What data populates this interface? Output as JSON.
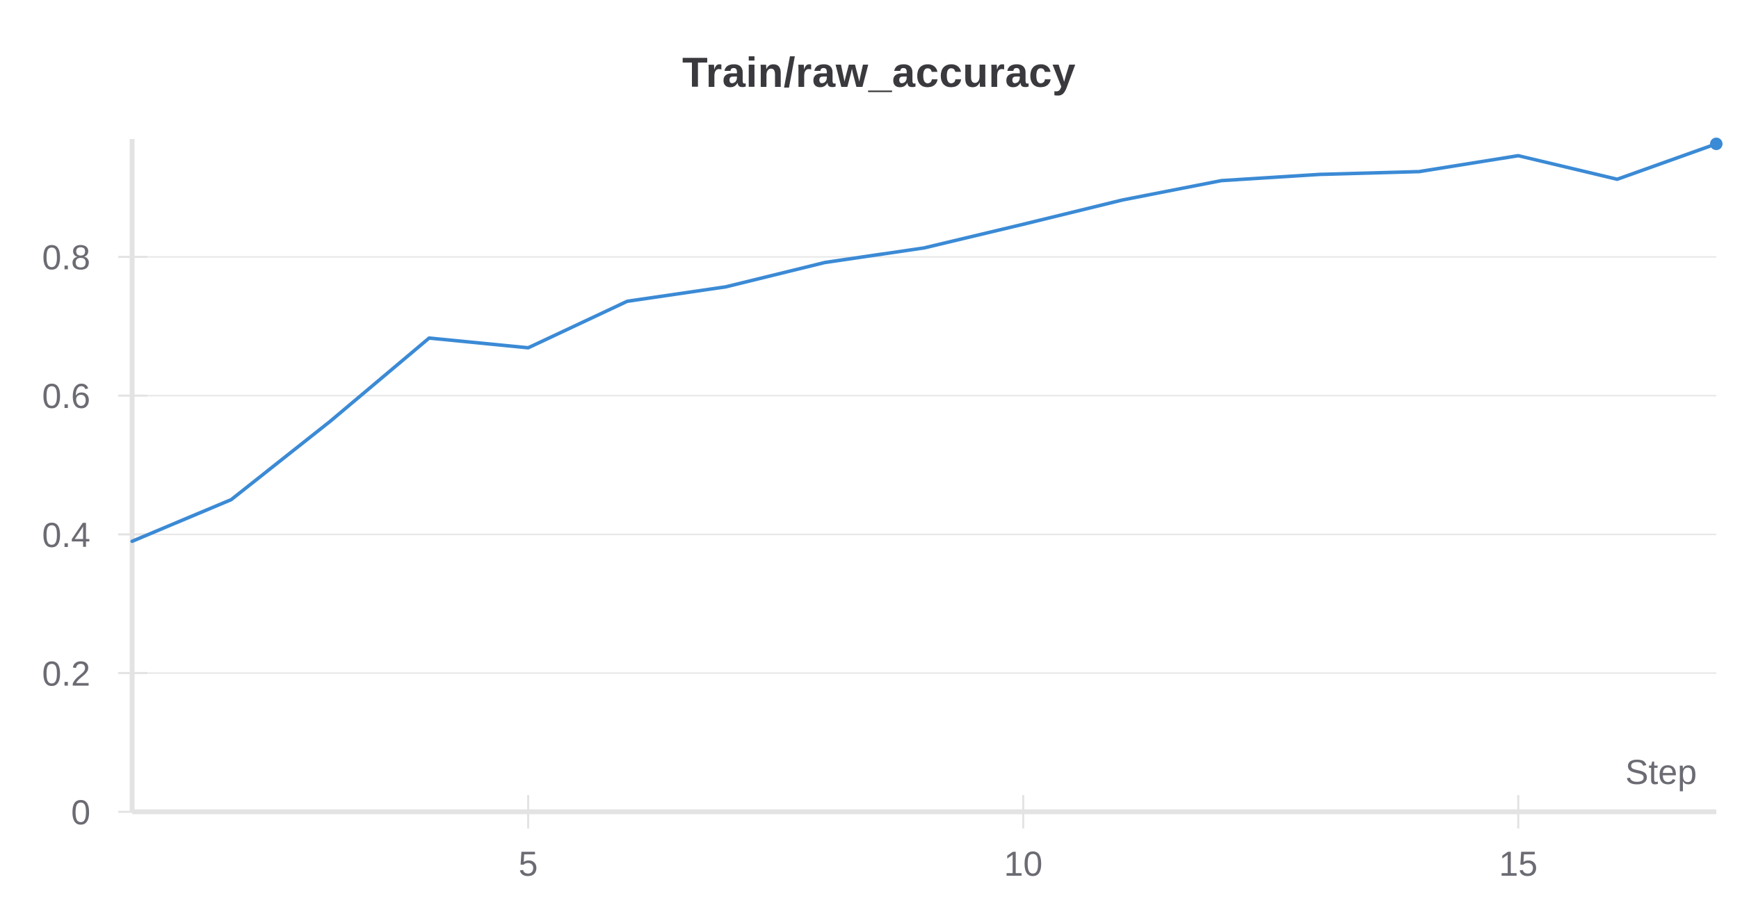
{
  "chart_data": {
    "type": "line",
    "title": "Train/raw_accuracy",
    "xlabel": "Step",
    "ylabel": "",
    "xlim": [
      1,
      17
    ],
    "ylim": [
      0,
      0.97
    ],
    "x_ticks": [
      5,
      10,
      15
    ],
    "y_ticks": [
      0,
      0.2,
      0.4,
      0.6,
      0.8
    ],
    "x_tick_labels": [
      "5",
      "10",
      "15"
    ],
    "y_tick_labels": [
      "0",
      "0.2",
      "0.4",
      "0.6",
      "0.8"
    ],
    "grid": true,
    "line_color": "#3b8ad5",
    "series": [
      {
        "x": [
          1,
          2,
          3,
          4,
          5,
          6,
          7,
          8,
          9,
          10,
          11,
          12,
          13,
          14,
          15,
          16,
          17
        ],
        "values": [
          0.39,
          0.45,
          0.563,
          0.683,
          0.669,
          0.736,
          0.757,
          0.792,
          0.813,
          0.847,
          0.882,
          0.91,
          0.919,
          0.923,
          0.946,
          0.912,
          0.963
        ]
      }
    ]
  }
}
